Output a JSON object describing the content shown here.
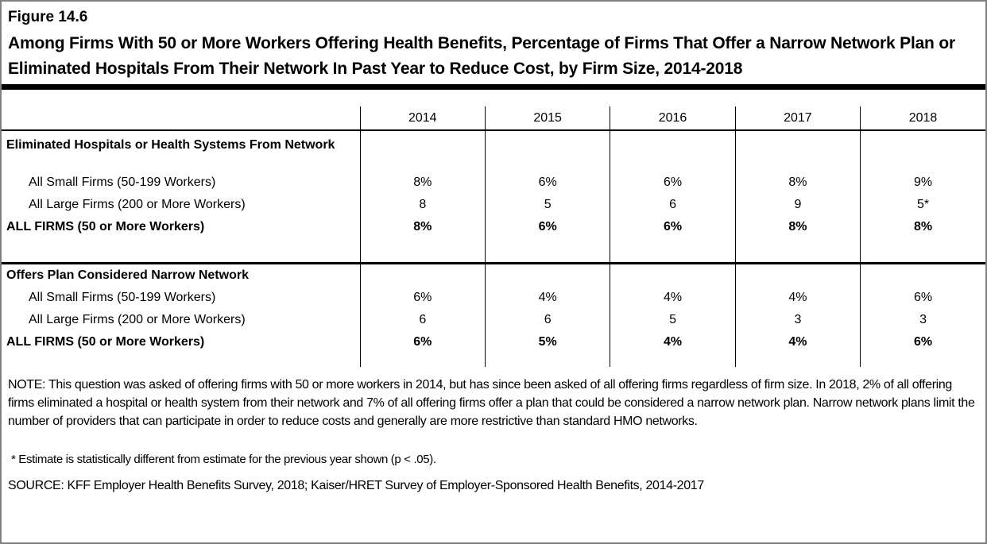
{
  "figure": {
    "label": "Figure 14.6",
    "title": "Among Firms With 50 or More Workers Offering Health Benefits, Percentage of Firms That Offer a Narrow Network Plan or Eliminated Hospitals From Their Network In Past Year to Reduce Cost, by Firm Size, 2014-2018"
  },
  "table": {
    "years": [
      "2014",
      "2015",
      "2016",
      "2017",
      "2018"
    ],
    "sections": [
      {
        "header": "Eliminated Hospitals or Health Systems From Network",
        "rows": [
          {
            "label": "All Small Firms (50-199 Workers)",
            "values": [
              "8%",
              "6%",
              "6%",
              "8%",
              "9%"
            ]
          },
          {
            "label": "All Large Firms (200 or More Workers)",
            "values": [
              "8",
              "5",
              "6",
              "9",
              "5*"
            ]
          },
          {
            "label": "ALL FIRMS (50 or More Workers)",
            "values": [
              "8%",
              "6%",
              "6%",
              "8%",
              "8%"
            ]
          }
        ]
      },
      {
        "header": "Offers Plan Considered Narrow Network",
        "rows": [
          {
            "label": "All Small Firms (50-199 Workers)",
            "values": [
              "6%",
              "4%",
              "4%",
              "4%",
              "6%"
            ]
          },
          {
            "label": "All Large Firms (200 or More Workers)",
            "values": [
              "6",
              "6",
              "5",
              "3",
              "3"
            ]
          },
          {
            "label": "ALL FIRMS (50 or More Workers)",
            "values": [
              "6%",
              "5%",
              "4%",
              "4%",
              "6%"
            ]
          }
        ]
      }
    ]
  },
  "notes": {
    "note": "NOTE: This question was asked of offering firms with 50 or more workers in 2014, but has since been asked of all offering firms regardless of firm size. In 2018, 2% of all offering firms eliminated a hospital or health system from their network and 7% of all offering firms offer a plan that could be considered a narrow network plan. Narrow network plans limit the number of providers that can participate in order to reduce costs and generally are more restrictive than standard HMO networks.",
    "footnote": "* Estimate is statistically different from estimate for the previous year shown (p < .05).",
    "source": "SOURCE: KFF Employer Health Benefits Survey, 2018; Kaiser/HRET Survey of Employer-Sponsored Health Benefits, 2014-2017"
  },
  "colors": {
    "text": "#000000",
    "page_border": "#808080",
    "rule": "#000000",
    "background": "#ffffff"
  }
}
